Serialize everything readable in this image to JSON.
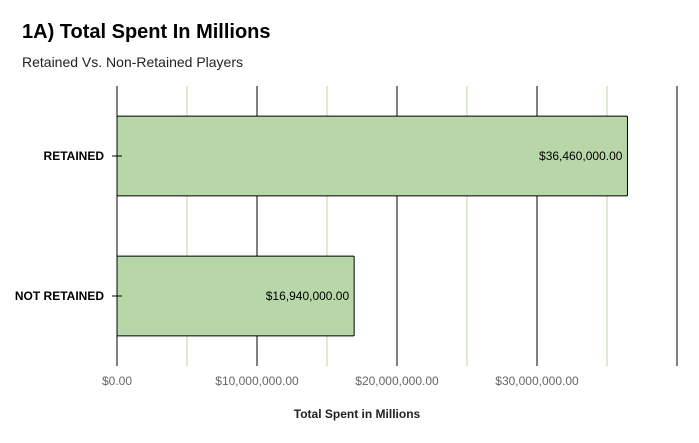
{
  "chart_data": {
    "type": "bar",
    "orientation": "horizontal",
    "title": "1A)  Total Spent In Millions",
    "subtitle": "Retained Vs. Non-Retained Players",
    "xlabel": "Total Spent in Millions",
    "categories": [
      "RETAINED",
      "NOT RETAINED"
    ],
    "values": [
      36460000,
      16940000
    ],
    "data_labels": [
      "$36,460,000.00",
      "$16,940,000.00"
    ],
    "xlim": [
      0,
      40000000
    ],
    "x_ticks": [
      0,
      10000000,
      20000000,
      30000000
    ],
    "x_tick_labels": [
      "$0.00",
      "$10,000,000.00",
      "$20,000,000.00",
      "$30,000,000.00"
    ],
    "grid": true,
    "colors": {
      "bar_fill": "#b7d7a8",
      "bar_stroke": "#000000",
      "major_grid": "#000000",
      "minor_grid": "#b7d7a8"
    }
  }
}
